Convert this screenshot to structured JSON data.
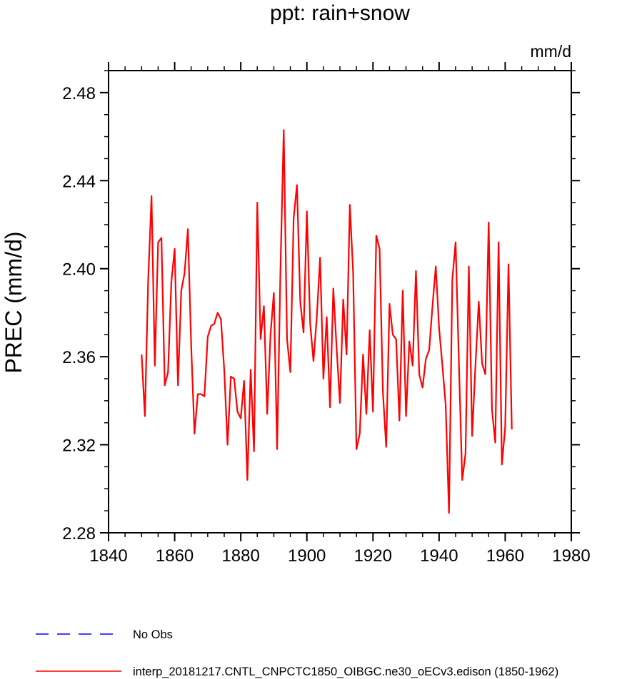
{
  "chart_data": {
    "type": "line",
    "title": "ppt: rain+snow",
    "units_label": "mm/d",
    "xlabel": "",
    "ylabel": "PREC  (mm/d)",
    "xlim": [
      1840,
      1980
    ],
    "ylim": [
      2.28,
      2.49
    ],
    "x_ticks": [
      1840,
      1860,
      1880,
      1900,
      1920,
      1940,
      1960,
      1980
    ],
    "x_tick_labels": [
      "1840",
      "1860",
      "1880",
      "1900",
      "1920",
      "1940",
      "1960",
      "1980"
    ],
    "y_ticks": [
      2.28,
      2.32,
      2.36,
      2.4,
      2.44,
      2.48
    ],
    "y_tick_labels": [
      "2.28",
      "2.32",
      "2.36",
      "2.40",
      "2.44",
      "2.48"
    ],
    "grid": false,
    "legend_position": "bottom-left",
    "series": [
      {
        "name": "No Obs",
        "color": "#0000ff",
        "style": "dashed",
        "x": [],
        "values": []
      },
      {
        "name": "interp_20181217.CNTL_CNPCTC1850_OIBGC.ne30_oECv3.edison (1850-1962)",
        "color": "#ff0000",
        "style": "solid",
        "x_start": 1850,
        "x_step": 1,
        "values": [
          2.361,
          2.333,
          2.395,
          2.433,
          2.356,
          2.412,
          2.414,
          2.347,
          2.353,
          2.394,
          2.409,
          2.347,
          2.39,
          2.398,
          2.418,
          2.365,
          2.325,
          2.343,
          2.343,
          2.342,
          2.369,
          2.374,
          2.375,
          2.38,
          2.377,
          2.354,
          2.32,
          2.351,
          2.35,
          2.335,
          2.332,
          2.349,
          2.304,
          2.354,
          2.317,
          2.43,
          2.368,
          2.383,
          2.334,
          2.37,
          2.389,
          2.318,
          2.399,
          2.463,
          2.368,
          2.353,
          2.423,
          2.438,
          2.385,
          2.371,
          2.426,
          2.375,
          2.358,
          2.378,
          2.405,
          2.35,
          2.378,
          2.337,
          2.391,
          2.364,
          2.339,
          2.386,
          2.361,
          2.429,
          2.398,
          2.318,
          2.325,
          2.361,
          2.334,
          2.372,
          2.335,
          2.415,
          2.409,
          2.344,
          2.319,
          2.384,
          2.37,
          2.368,
          2.331,
          2.39,
          2.333,
          2.367,
          2.356,
          2.399,
          2.352,
          2.346,
          2.359,
          2.363,
          2.383,
          2.401,
          2.373,
          2.356,
          2.338,
          2.289,
          2.395,
          2.412,
          2.357,
          2.304,
          2.316,
          2.401,
          2.324,
          2.356,
          2.385,
          2.357,
          2.352,
          2.421,
          2.336,
          2.321,
          2.412,
          2.311,
          2.328,
          2.402,
          2.327
        ]
      }
    ]
  }
}
